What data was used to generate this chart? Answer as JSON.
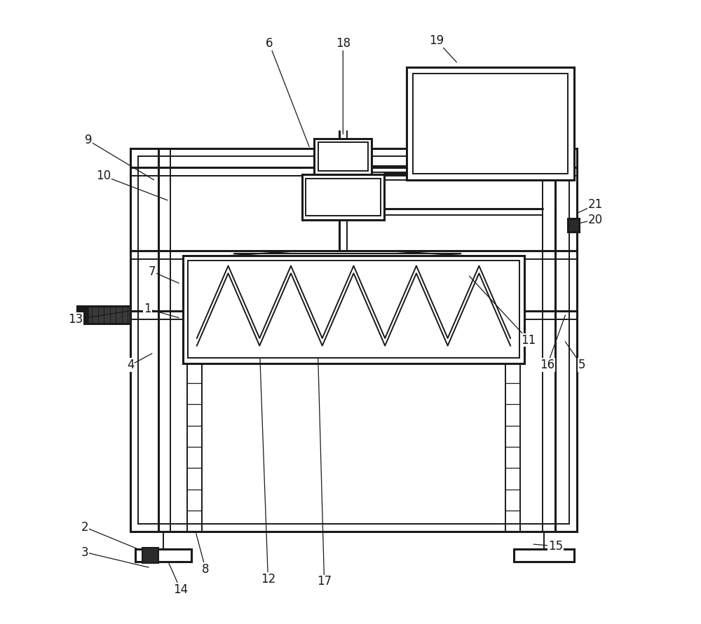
{
  "bg_color": "#ffffff",
  "line_color": "#1a1a1a",
  "lw": 1.4,
  "lw2": 2.2,
  "fig_w": 10.0,
  "fig_h": 8.91,
  "label_fontsize": 12,
  "leader_lines": {
    "1": [
      0.175,
      0.505,
      0.228,
      0.49
    ],
    "2": [
      0.075,
      0.155,
      0.165,
      0.118
    ],
    "3": [
      0.075,
      0.115,
      0.18,
      0.09
    ],
    "4": [
      0.148,
      0.415,
      0.185,
      0.435
    ],
    "5": [
      0.87,
      0.415,
      0.842,
      0.455
    ],
    "6": [
      0.37,
      0.93,
      0.435,
      0.762
    ],
    "7": [
      0.182,
      0.565,
      0.228,
      0.545
    ],
    "8": [
      0.268,
      0.088,
      0.252,
      0.148
    ],
    "9": [
      0.08,
      0.775,
      0.188,
      0.71
    ],
    "10": [
      0.105,
      0.718,
      0.21,
      0.678
    ],
    "11": [
      0.785,
      0.455,
      0.688,
      0.56
    ],
    "12": [
      0.368,
      0.072,
      0.355,
      0.428
    ],
    "13": [
      0.06,
      0.488,
      0.148,
      0.502
    ],
    "14": [
      0.228,
      0.055,
      0.208,
      0.1
    ],
    "15": [
      0.828,
      0.125,
      0.79,
      0.128
    ],
    "16": [
      0.815,
      0.415,
      0.845,
      0.498
    ],
    "17": [
      0.458,
      0.068,
      0.448,
      0.428
    ],
    "18": [
      0.488,
      0.93,
      0.488,
      0.782
    ],
    "19": [
      0.638,
      0.935,
      0.672,
      0.898
    ],
    "20": [
      0.892,
      0.648,
      0.865,
      0.642
    ],
    "21": [
      0.892,
      0.672,
      0.862,
      0.658
    ]
  }
}
